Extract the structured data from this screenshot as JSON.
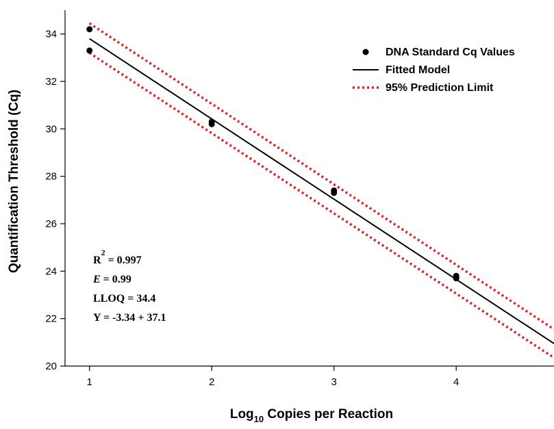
{
  "chart_data": {
    "type": "scatter",
    "xlabel_main": "Log",
    "xlabel_sub": "10",
    "xlabel_rest": " Copies per Reaction",
    "ylabel": "Quantification Threshold (Cq)",
    "xlim": [
      0.8,
      4.8
    ],
    "ylim": [
      20,
      35
    ],
    "xticks": [
      1,
      2,
      3,
      4
    ],
    "yticks": [
      20,
      22,
      24,
      26,
      28,
      30,
      32,
      34
    ],
    "grid": false,
    "legend_position": "top-right",
    "series": [
      {
        "name": "DNA Standard Cq Values",
        "kind": "points",
        "color": "#000000",
        "points": [
          [
            1,
            34.2
          ],
          [
            1,
            33.3
          ],
          [
            2,
            30.3
          ],
          [
            2,
            30.2
          ],
          [
            3,
            27.4
          ],
          [
            3,
            27.3
          ],
          [
            4,
            23.8
          ],
          [
            4,
            23.7
          ]
        ]
      },
      {
        "name": "Fitted Model",
        "kind": "line",
        "color": "#000000",
        "points": [
          [
            1,
            33.8
          ],
          [
            4.8,
            20.95
          ]
        ]
      },
      {
        "name": "95% Prediction Limit",
        "kind": "dotted-line",
        "color": "#e02020",
        "points": [
          [
            1,
            34.45
          ],
          [
            4.8,
            21.55
          ]
        ]
      },
      {
        "name": "95% Prediction Limit",
        "kind": "dotted-line",
        "color": "#e02020",
        "points": [
          [
            1,
            33.2
          ],
          [
            4.8,
            20.35
          ]
        ]
      }
    ],
    "legend": [
      {
        "label": "DNA Standard Cq Values",
        "symbol": "dot"
      },
      {
        "label": "Fitted Model",
        "symbol": "line"
      },
      {
        "label": "95% Prediction Limit",
        "symbol": "dotted"
      }
    ],
    "annotations": {
      "r2_main": "R",
      "r2_sup": "2",
      "r2_rest": " = 0.997",
      "e_var": "E",
      "e_rest": " = 0.99",
      "lloq": "LLOQ = 34.4",
      "eq": "Y = -3.34 + 37.1"
    }
  }
}
